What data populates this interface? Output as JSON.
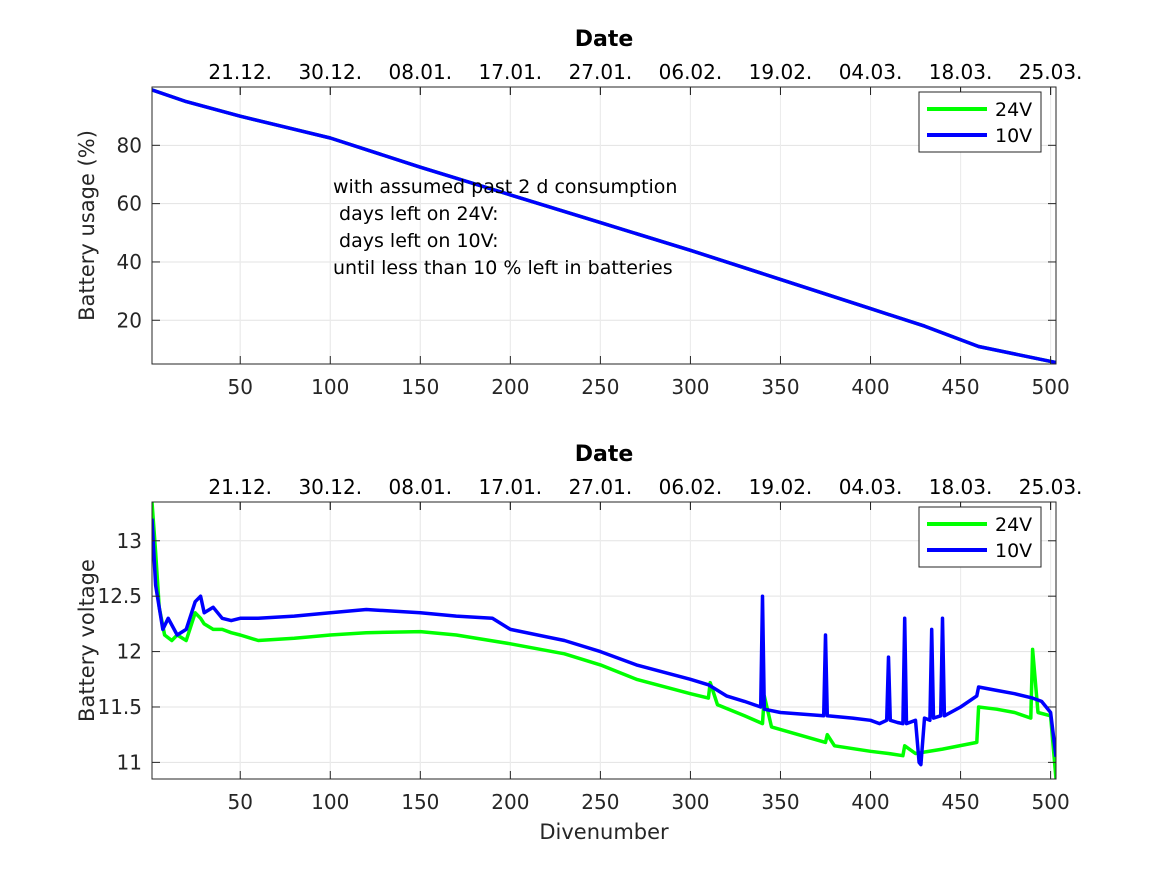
{
  "chart_data": [
    {
      "type": "line",
      "title": "Date",
      "xlabel": "",
      "ylabel": "Battery usage (%)",
      "xlim": [
        1,
        503
      ],
      "ylim": [
        5,
        100
      ],
      "xticks": [
        50,
        100,
        150,
        200,
        250,
        300,
        350,
        400,
        450,
        500
      ],
      "yticks": [
        20,
        40,
        60,
        80
      ],
      "top_axis_ticks": [
        {
          "x": 50,
          "label": "21.12."
        },
        {
          "x": 100,
          "label": "30.12."
        },
        {
          "x": 150,
          "label": "08.01."
        },
        {
          "x": 200,
          "label": "17.01."
        },
        {
          "x": 250,
          "label": "27.01."
        },
        {
          "x": 300,
          "label": "06.02."
        },
        {
          "x": 350,
          "label": "19.02."
        },
        {
          "x": 400,
          "label": "04.03."
        },
        {
          "x": 450,
          "label": "18.03."
        },
        {
          "x": 500,
          "label": "25.03."
        }
      ],
      "grid": true,
      "legend_position": "top-right",
      "annotation": [
        "with assumed past 2 d consumption",
        " days left on 24V:",
        " days left on 10V:",
        "until less than 10 % left in batteries"
      ],
      "series": [
        {
          "name": "24V",
          "color": "#00ff00",
          "x": [
            1,
            20,
            50,
            100,
            150,
            200,
            250,
            300,
            350,
            400,
            430,
            460,
            503
          ],
          "values": [
            99,
            95,
            90,
            82.5,
            72.5,
            63,
            53.5,
            44,
            34,
            24,
            18,
            11,
            5.5
          ]
        },
        {
          "name": "10V",
          "color": "#0000ff",
          "x": [
            1,
            20,
            50,
            100,
            150,
            200,
            250,
            300,
            350,
            400,
            430,
            460,
            503
          ],
          "values": [
            99,
            95,
            90,
            82.5,
            72.5,
            63,
            53.5,
            44,
            34,
            24,
            18,
            11,
            5.5
          ]
        }
      ]
    },
    {
      "type": "line",
      "title": "Date",
      "xlabel": "Divenumber",
      "ylabel": "Battery voltage",
      "xlim": [
        1,
        503
      ],
      "ylim": [
        10.85,
        13.35
      ],
      "xticks": [
        50,
        100,
        150,
        200,
        250,
        300,
        350,
        400,
        450,
        500
      ],
      "yticks": [
        11,
        11.5,
        12,
        12.5,
        13
      ],
      "top_axis_ticks": [
        {
          "x": 50,
          "label": "21.12."
        },
        {
          "x": 100,
          "label": "30.12."
        },
        {
          "x": 150,
          "label": "08.01."
        },
        {
          "x": 200,
          "label": "17.01."
        },
        {
          "x": 250,
          "label": "27.01."
        },
        {
          "x": 300,
          "label": "06.02."
        },
        {
          "x": 350,
          "label": "19.02."
        },
        {
          "x": 400,
          "label": "04.03."
        },
        {
          "x": 450,
          "label": "18.03."
        },
        {
          "x": 500,
          "label": "25.03."
        }
      ],
      "grid": true,
      "legend_position": "top-right",
      "series": [
        {
          "name": "24V",
          "color": "#00ff00",
          "x": [
            1,
            3,
            5,
            8,
            12,
            15,
            20,
            25,
            28,
            30,
            35,
            40,
            45,
            50,
            60,
            80,
            100,
            120,
            150,
            170,
            200,
            230,
            250,
            270,
            300,
            310,
            311,
            315,
            330,
            340,
            341,
            345,
            360,
            375,
            376,
            380,
            400,
            410,
            418,
            419,
            425,
            440,
            459,
            460,
            470,
            480,
            489,
            490,
            493,
            500,
            503
          ],
          "values": [
            13.35,
            12.9,
            12.4,
            12.15,
            12.1,
            12.15,
            12.1,
            12.35,
            12.3,
            12.25,
            12.2,
            12.2,
            12.17,
            12.15,
            12.1,
            12.12,
            12.15,
            12.17,
            12.18,
            12.15,
            12.07,
            11.98,
            11.88,
            11.75,
            11.62,
            11.58,
            11.72,
            11.52,
            11.42,
            11.35,
            11.6,
            11.32,
            11.25,
            11.18,
            11.25,
            11.15,
            11.1,
            11.08,
            11.06,
            11.15,
            11.08,
            11.12,
            11.18,
            11.5,
            11.48,
            11.45,
            11.4,
            12.02,
            11.45,
            11.42,
            10.85
          ]
        },
        {
          "name": "10V",
          "color": "#0000ff",
          "x": [
            1,
            3,
            5,
            7,
            10,
            15,
            20,
            25,
            28,
            30,
            35,
            40,
            45,
            50,
            60,
            80,
            100,
            120,
            150,
            170,
            190,
            200,
            230,
            250,
            270,
            300,
            310,
            320,
            330,
            339,
            340,
            341,
            350,
            374,
            375,
            376,
            390,
            400,
            405,
            409,
            410,
            411,
            415,
            418,
            419,
            420,
            425,
            427,
            428,
            430,
            433,
            434,
            435,
            439,
            440,
            441,
            450,
            459,
            460,
            470,
            480,
            490,
            495,
            500,
            503
          ],
          "values": [
            13.2,
            12.6,
            12.4,
            12.2,
            12.3,
            12.15,
            12.2,
            12.45,
            12.5,
            12.35,
            12.4,
            12.3,
            12.28,
            12.3,
            12.3,
            12.32,
            12.35,
            12.38,
            12.35,
            12.32,
            12.3,
            12.2,
            12.1,
            12.0,
            11.88,
            11.75,
            11.7,
            11.6,
            11.55,
            11.5,
            12.5,
            11.48,
            11.45,
            11.42,
            12.15,
            11.42,
            11.4,
            11.38,
            11.35,
            11.38,
            11.95,
            11.38,
            11.36,
            11.35,
            12.3,
            11.35,
            11.38,
            11.0,
            10.98,
            11.4,
            11.38,
            12.2,
            11.4,
            11.42,
            12.3,
            11.42,
            11.5,
            11.6,
            11.68,
            11.65,
            11.62,
            11.58,
            11.55,
            11.45,
            11.05
          ]
        }
      ]
    }
  ]
}
